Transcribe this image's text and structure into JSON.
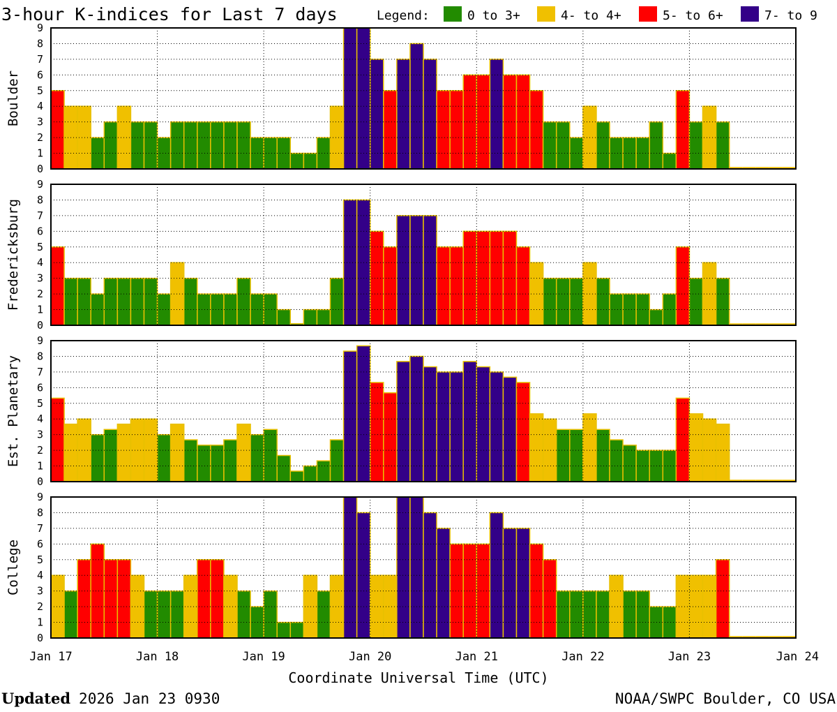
{
  "title": "3-hour K-indices for Last 7 days",
  "legend": {
    "label": "Legend:",
    "items": [
      {
        "label": "0 to 3+",
        "color": "#228b00"
      },
      {
        "label": "4- to 4+",
        "color": "#f0c000"
      },
      {
        "label": "5- to 6+",
        "color": "#ff0000"
      },
      {
        "label": "7- to 9",
        "color": "#330088"
      }
    ]
  },
  "footer": {
    "updated_label": "Updated",
    "updated_value": "2026 Jan 23 0930",
    "source": "NOAA/SWPC Boulder, CO USA"
  },
  "chart_data": {
    "type": "bar",
    "xlabel": "Coordinate Universal Time (UTC)",
    "x_ticks": [
      "Jan 17",
      "Jan 18",
      "Jan 19",
      "Jan 20",
      "Jan 21",
      "Jan 22",
      "Jan 23",
      "Jan 24"
    ],
    "yticks": [
      "0",
      "1",
      "2",
      "3",
      "4",
      "5",
      "6",
      "7",
      "8",
      "9"
    ],
    "ylim": [
      0,
      9
    ],
    "bins_per_day": 8,
    "grid": true,
    "panels": [
      {
        "name": "Boulder",
        "values": [
          5,
          4,
          4,
          2,
          3,
          4,
          3,
          3,
          2,
          3,
          3,
          3,
          3,
          3,
          3,
          2,
          2,
          2,
          1,
          1,
          2,
          4,
          9,
          9,
          7,
          5,
          7,
          8,
          7,
          5,
          5,
          6,
          6,
          7,
          6,
          6,
          5,
          3,
          3,
          2,
          4,
          3,
          2,
          2,
          2,
          3,
          1,
          5,
          3,
          4,
          3,
          0,
          0,
          0,
          0,
          0
        ]
      },
      {
        "name": "Fredericksburg",
        "values": [
          5,
          3,
          3,
          2,
          3,
          3,
          3,
          3,
          2,
          4,
          3,
          2,
          2,
          2,
          3,
          2,
          2,
          1,
          0.1,
          1,
          1,
          3,
          8,
          8,
          6,
          5,
          7,
          7,
          7,
          5,
          5,
          6,
          6,
          6,
          6,
          5,
          4,
          3,
          3,
          3,
          4,
          3,
          2,
          2,
          2,
          1,
          2,
          5,
          3,
          4,
          3,
          0,
          0,
          0,
          0,
          0
        ]
      },
      {
        "name": "Est. Planetary",
        "values": [
          5.33,
          3.67,
          4,
          3,
          3.33,
          3.67,
          4,
          4,
          3,
          3.67,
          2.67,
          2.33,
          2.33,
          2.67,
          3.67,
          3,
          3.33,
          1.67,
          0.67,
          1,
          1.33,
          2.67,
          8.33,
          8.67,
          6.33,
          5.67,
          7.67,
          8,
          7.33,
          7,
          7,
          7.67,
          7.33,
          7,
          6.67,
          6.33,
          4.33,
          4,
          3.33,
          3.33,
          4.33,
          3.33,
          2.67,
          2.33,
          2,
          2,
          2,
          5.33,
          4.33,
          4,
          3.67,
          0,
          0,
          0,
          0,
          0
        ]
      },
      {
        "name": "College",
        "values": [
          4,
          3,
          5,
          6,
          5,
          5,
          4,
          3,
          3,
          3,
          4,
          5,
          5,
          4,
          3,
          2,
          3,
          1,
          1,
          4,
          3,
          4,
          9,
          8,
          4,
          4,
          9,
          9,
          8,
          7,
          6,
          6,
          6,
          8,
          7,
          7,
          6,
          5,
          3,
          3,
          3,
          3,
          4,
          3,
          3,
          2,
          2,
          4,
          4,
          4,
          5,
          0,
          0,
          0,
          0,
          0
        ]
      }
    ]
  }
}
